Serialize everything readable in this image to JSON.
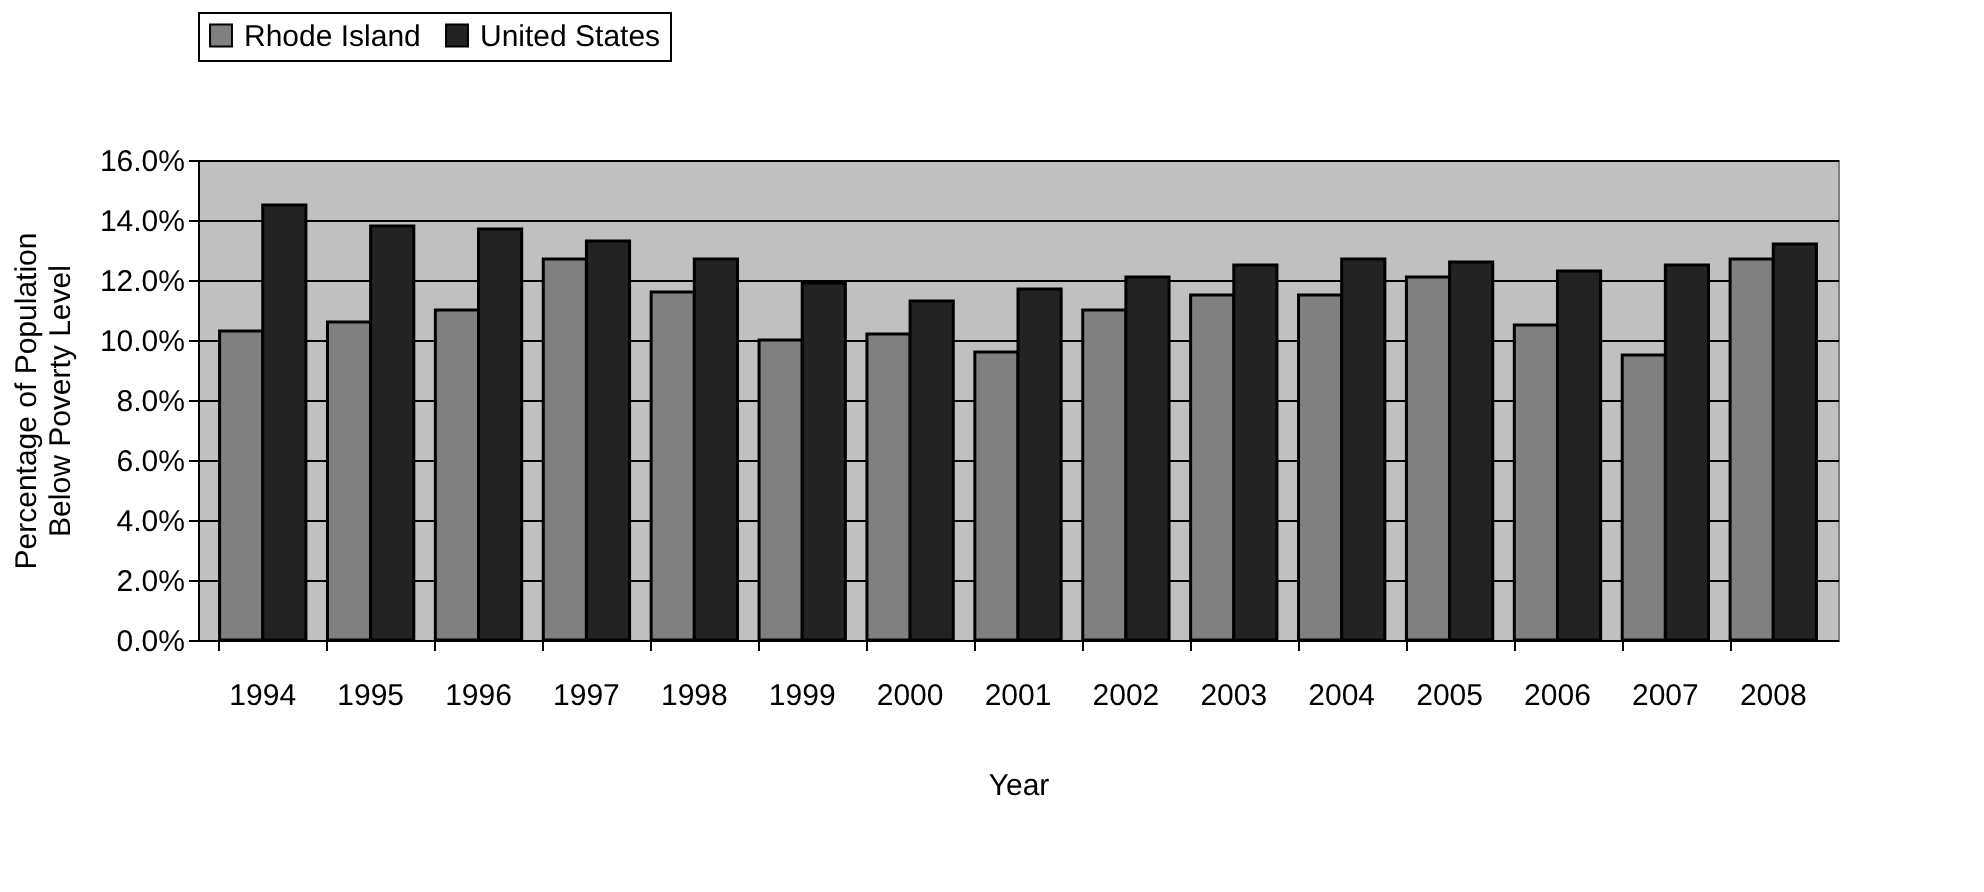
{
  "chart_data": {
    "type": "bar",
    "xlabel": "Year",
    "ylabel": "Percentage of Population Below Poverty Level",
    "categories": [
      "1994",
      "1995",
      "1996",
      "1997",
      "1998",
      "1999",
      "2000",
      "2001",
      "2002",
      "2003",
      "2004",
      "2005",
      "2006",
      "2007",
      "2008"
    ],
    "series": [
      {
        "name": "Rhode Island",
        "color": "#808080",
        "values": [
          10.3,
          10.6,
          11.0,
          12.7,
          11.6,
          10.0,
          10.2,
          9.6,
          11.0,
          11.5,
          11.5,
          12.1,
          10.5,
          9.5,
          12.7
        ]
      },
      {
        "name": "United States",
        "color": "#232323",
        "values": [
          14.5,
          13.8,
          13.7,
          13.3,
          12.7,
          11.9,
          11.3,
          11.7,
          12.1,
          12.5,
          12.7,
          12.6,
          12.3,
          12.5,
          13.2
        ]
      }
    ],
    "ylim": [
      0,
      16
    ],
    "yticks": [
      {
        "value": 0,
        "label": "0.0%"
      },
      {
        "value": 2,
        "label": "2.0%"
      },
      {
        "value": 4,
        "label": "4.0%"
      },
      {
        "value": 6,
        "label": "6.0%"
      },
      {
        "value": 8,
        "label": "8.0%"
      },
      {
        "value": 10,
        "label": "10.0%"
      },
      {
        "value": 12,
        "label": "12.0%"
      },
      {
        "value": 14,
        "label": "14.0%"
      },
      {
        "value": 16,
        "label": "16.0%"
      }
    ],
    "grid": "y",
    "legend": "top"
  }
}
